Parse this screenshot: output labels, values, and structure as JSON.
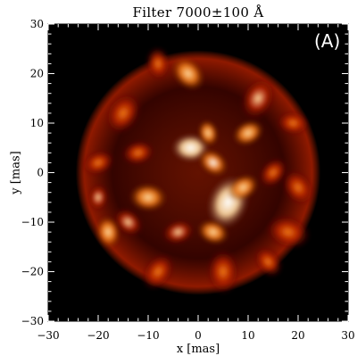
{
  "chart_data": {
    "type": "heatmap",
    "title": "Filter 7000±100 Å",
    "xlabel": "x [mas]",
    "ylabel": "y [mas]",
    "panel_label": "(A)",
    "xlim": [
      -30,
      30
    ],
    "ylim": [
      -30,
      30
    ],
    "xticks": [
      -30,
      -20,
      -10,
      0,
      10,
      20,
      30
    ],
    "yticks": [
      -30,
      -20,
      -10,
      0,
      10,
      20,
      30
    ],
    "colormap": [
      "#000000",
      "#4a0500",
      "#b32000",
      "#f07a10",
      "#ffd9a0",
      "#ffffff"
    ],
    "stellar_disk": {
      "center": [
        0,
        0
      ],
      "radius": 24.5
    },
    "bright_features": [
      {
        "x": -1.5,
        "y": 5,
        "intensity": 1.0,
        "size": 3.5
      },
      {
        "x": 3,
        "y": 2,
        "intensity": 0.95,
        "size": 3
      },
      {
        "x": 2,
        "y": 8,
        "intensity": 0.85,
        "size": 2.5
      },
      {
        "x": 6,
        "y": -6,
        "intensity": 1.0,
        "size": 5
      },
      {
        "x": 9,
        "y": -3,
        "intensity": 0.8,
        "size": 3
      },
      {
        "x": -10,
        "y": -5,
        "intensity": 0.75,
        "size": 3.5
      },
      {
        "x": -14,
        "y": -10,
        "intensity": 0.7,
        "size": 3
      },
      {
        "x": -18,
        "y": -12,
        "intensity": 0.75,
        "size": 3
      },
      {
        "x": 12,
        "y": 15,
        "intensity": 0.7,
        "size": 4
      },
      {
        "x": 10,
        "y": 8,
        "intensity": 0.75,
        "size": 3
      },
      {
        "x": 19,
        "y": 10,
        "intensity": 0.65,
        "size": 3
      },
      {
        "x": -2,
        "y": 20,
        "intensity": 0.75,
        "size": 3.5
      },
      {
        "x": -8,
        "y": 22,
        "intensity": 0.6,
        "size": 3
      },
      {
        "x": -15,
        "y": 12,
        "intensity": 0.55,
        "size": 4
      },
      {
        "x": -20,
        "y": 2,
        "intensity": 0.6,
        "size": 3
      },
      {
        "x": 18,
        "y": -12,
        "intensity": 0.6,
        "size": 4
      },
      {
        "x": 14,
        "y": -18,
        "intensity": 0.55,
        "size": 3
      },
      {
        "x": 5,
        "y": -20,
        "intensity": 0.55,
        "size": 4
      },
      {
        "x": -8,
        "y": -20,
        "intensity": 0.5,
        "size": 3.5
      },
      {
        "x": -4,
        "y": -12,
        "intensity": 0.7,
        "size": 3
      },
      {
        "x": 3,
        "y": -12,
        "intensity": 0.75,
        "size": 3
      },
      {
        "x": 20,
        "y": -3,
        "intensity": 0.6,
        "size": 3.5
      },
      {
        "x": -20,
        "y": -5,
        "intensity": 0.7,
        "size": 2.5
      },
      {
        "x": 15,
        "y": 0,
        "intensity": 0.55,
        "size": 3
      },
      {
        "x": -12,
        "y": 4,
        "intensity": 0.5,
        "size": 3
      }
    ]
  }
}
